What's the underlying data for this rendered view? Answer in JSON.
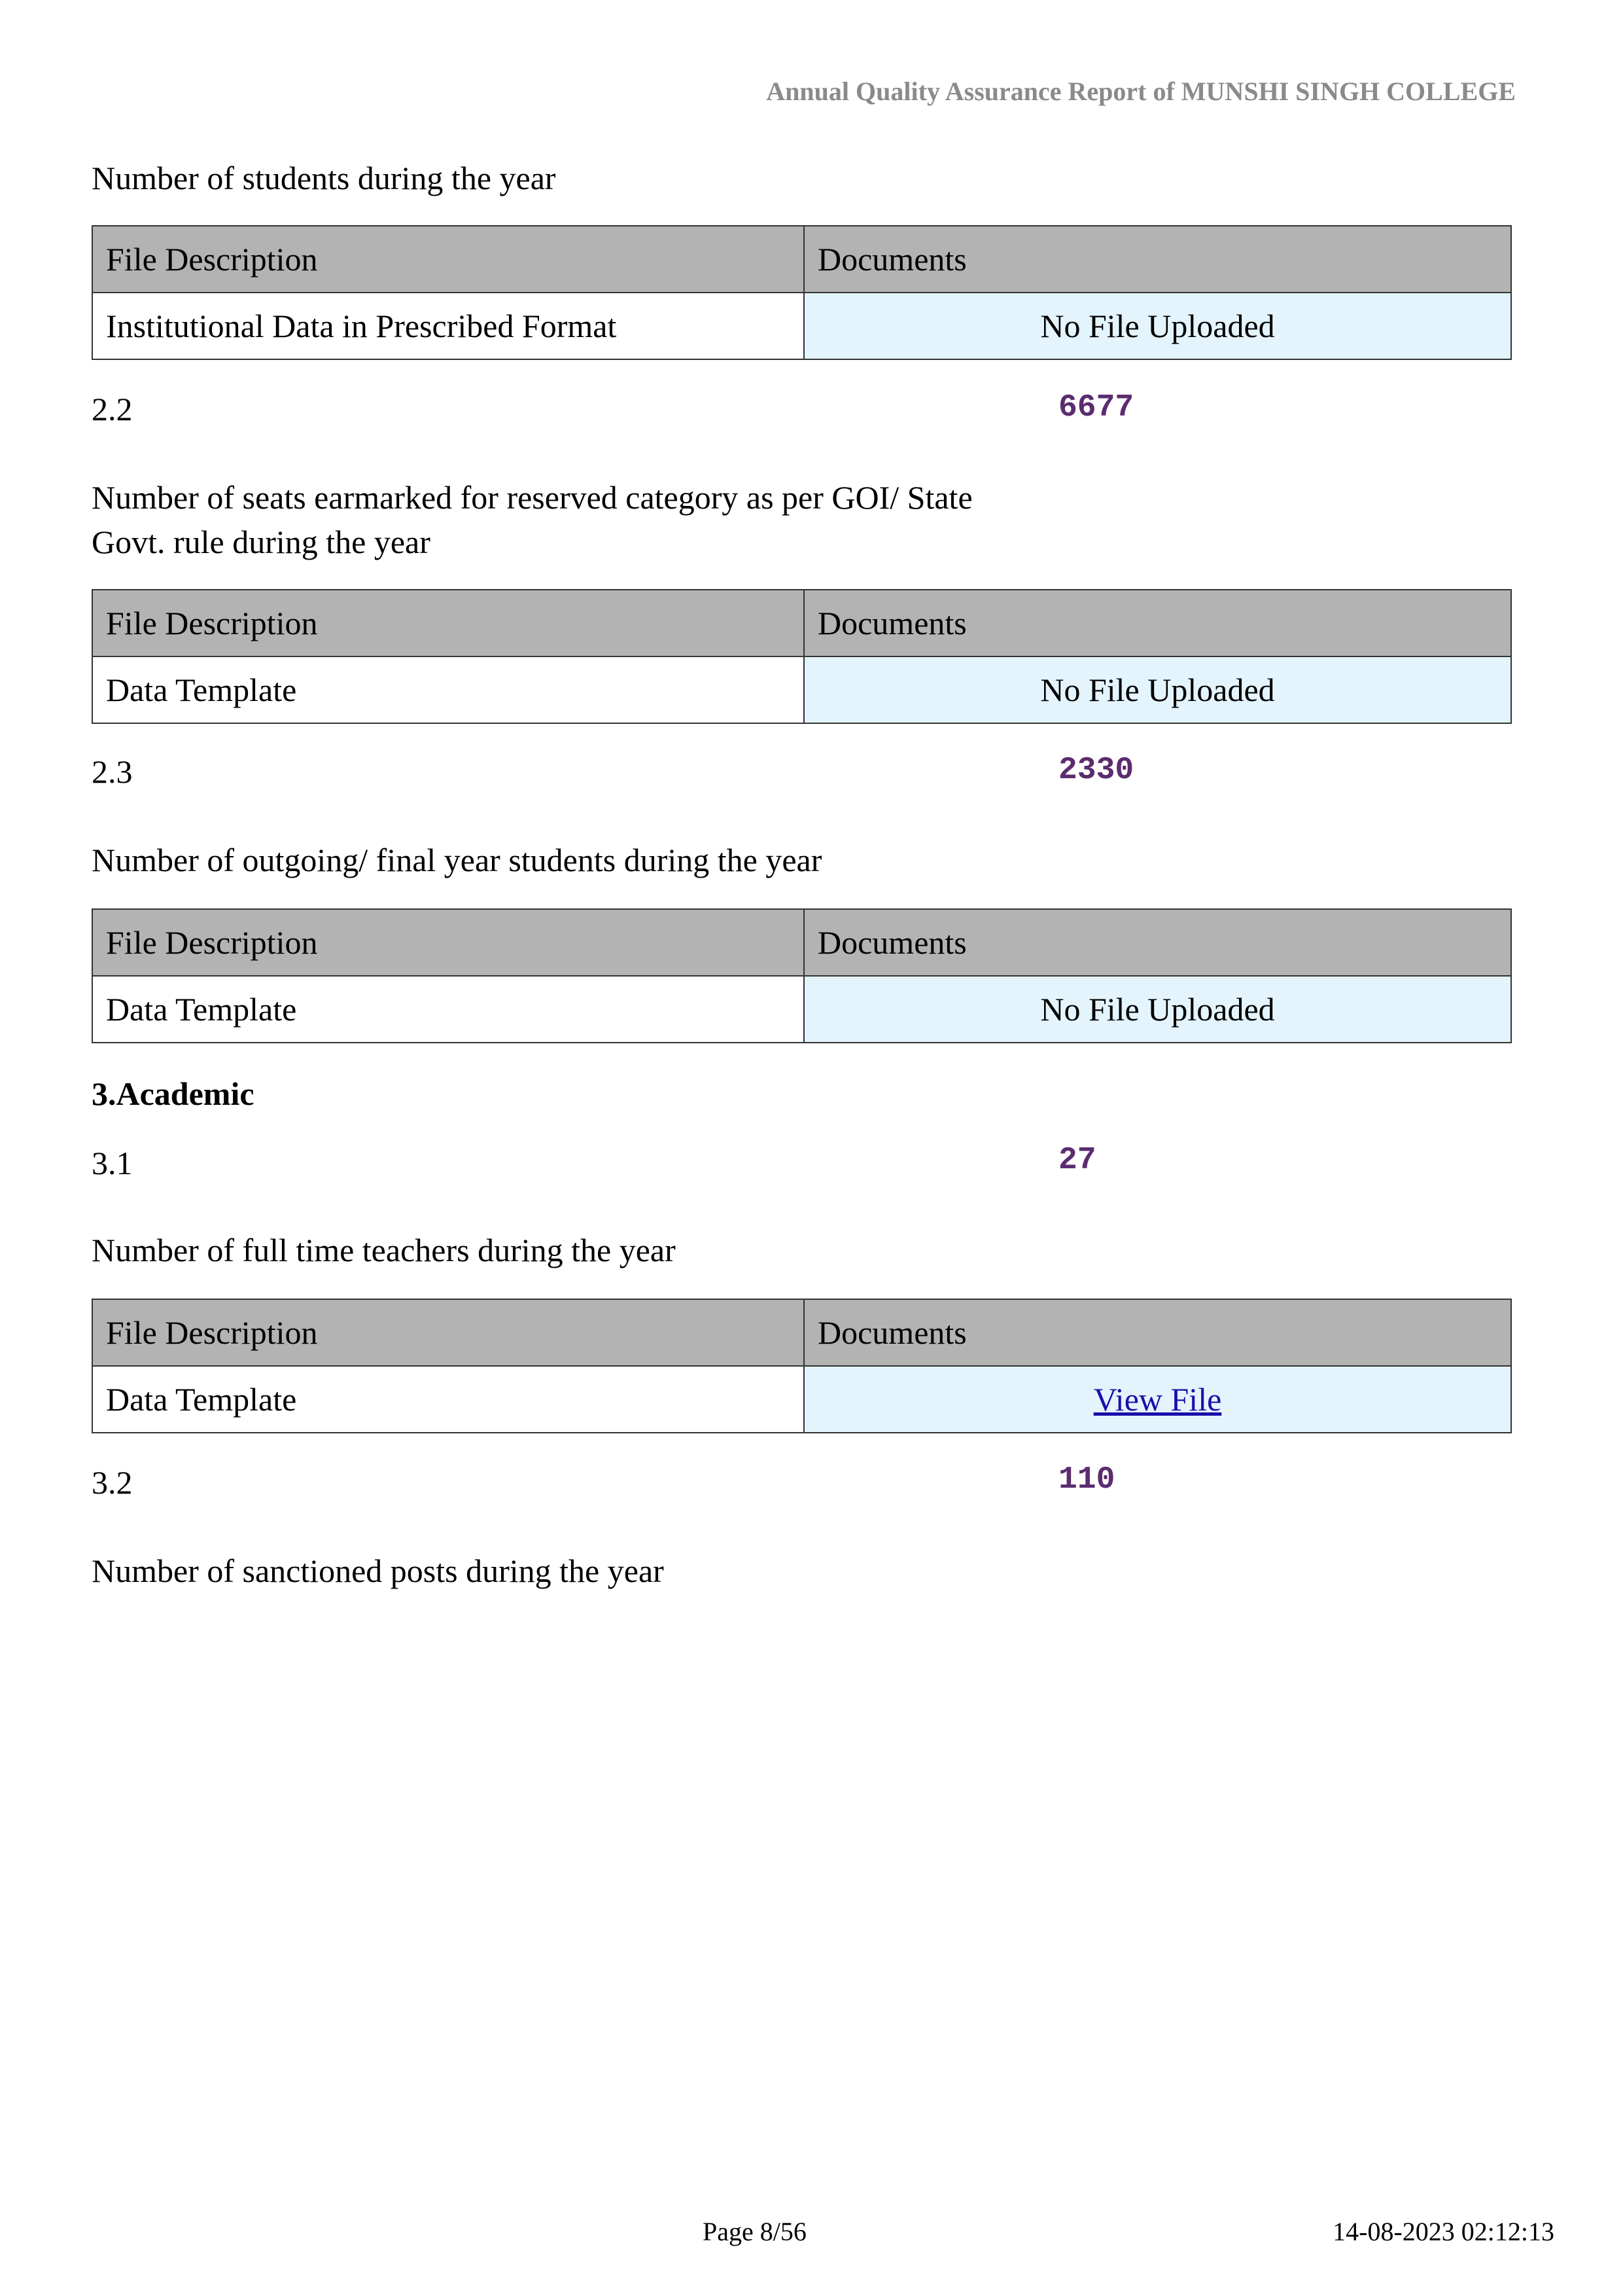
{
  "header": {
    "title": "Annual Quality Assurance Report of MUNSHI SINGH COLLEGE"
  },
  "table_headers": {
    "file_description": "File Description",
    "documents": "Documents"
  },
  "blocks": [
    {
      "label": "Number of students during the year",
      "file_description": "Institutional Data in Prescribed Format",
      "document": "No File Uploaded"
    },
    {
      "id": "2.2",
      "value": "6677",
      "label_line1": "Number of seats earmarked for reserved category as per GOI/ State",
      "label_line2": "Govt. rule during the year",
      "file_description": "Data Template",
      "document": "No File Uploaded"
    },
    {
      "id": "2.3",
      "value": "2330",
      "label": "Number of outgoing/ final year students during the year",
      "file_description": "Data Template",
      "document": "No File Uploaded"
    },
    {
      "section": "3.Academic",
      "id": "3.1",
      "value": "27",
      "label": "Number of full time teachers during the year",
      "file_description": "Data Template",
      "document": "View File"
    },
    {
      "id": "3.2",
      "value": "110",
      "label": "Number of sanctioned posts during the year"
    }
  ],
  "footer": {
    "page": "Page 8/56",
    "timestamp": "14-08-2023 02:12:13"
  },
  "colors": {
    "value": "#5b2c6f",
    "header_row": "#b3b3b3",
    "document_cell": "#e4f4fc",
    "link": "#1a0dab"
  }
}
